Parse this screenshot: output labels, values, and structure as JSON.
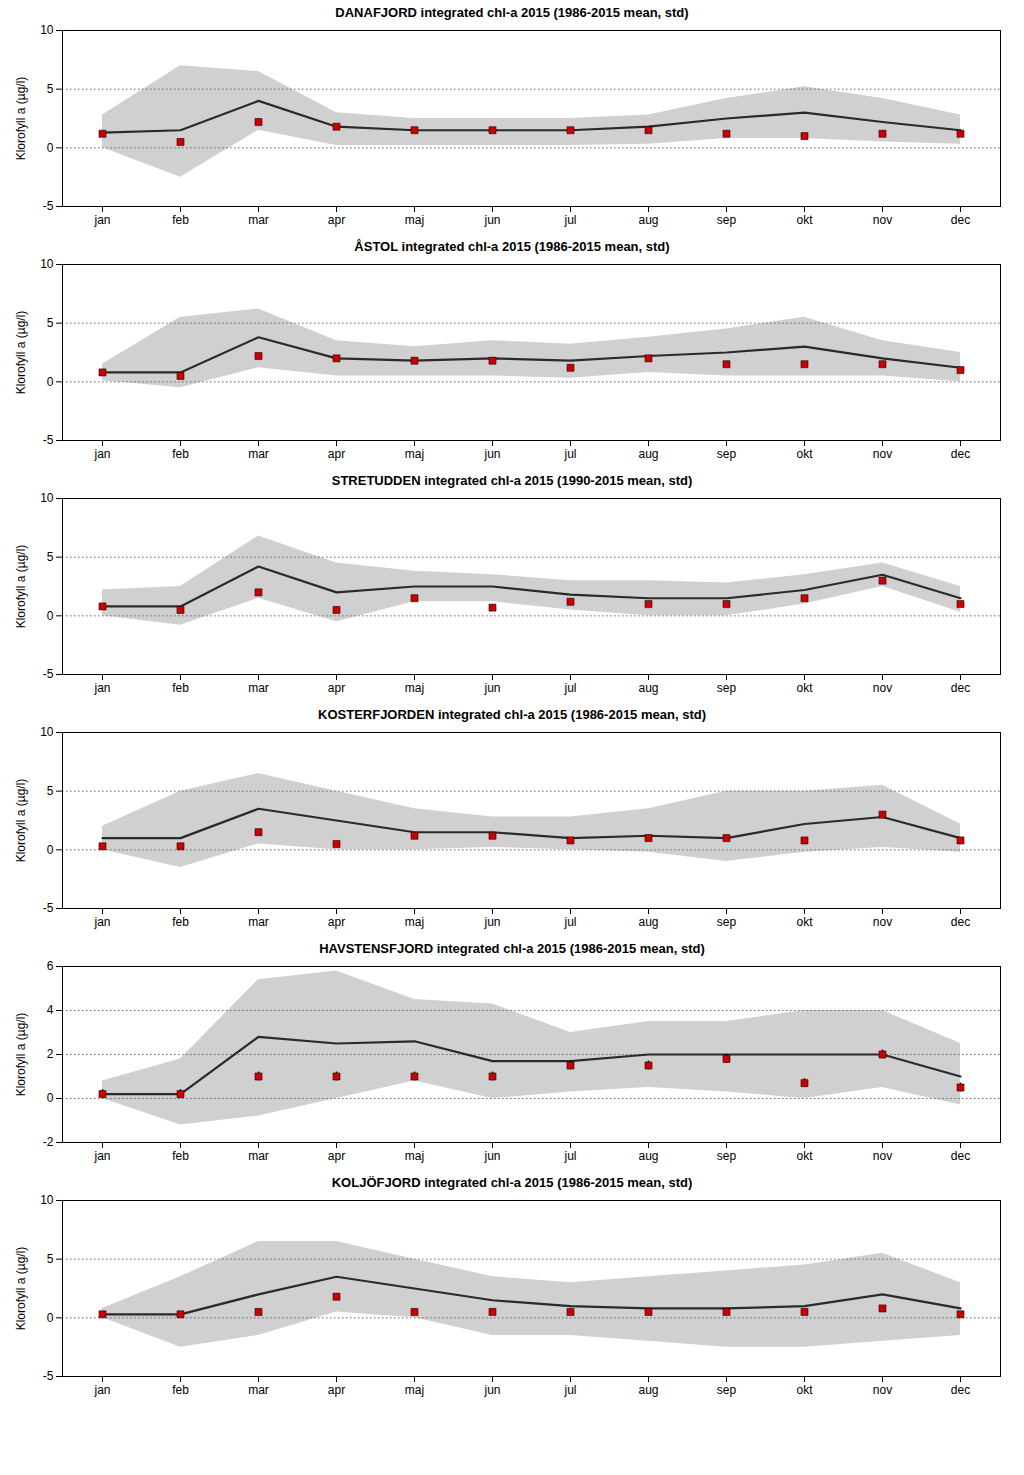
{
  "chart_data": [
    {
      "type": "line",
      "title": "DANAFJORD integrated chl-a 2015 (1986-2015 mean, std)",
      "categories": [
        "jan",
        "feb",
        "mar",
        "apr",
        "maj",
        "jun",
        "jul",
        "aug",
        "sep",
        "okt",
        "nov",
        "dec"
      ],
      "ylabel": "Klorofyll a (µg/l)",
      "ylim": [
        -5,
        10
      ],
      "yticks": [
        -5,
        0,
        5,
        10
      ],
      "grid": false,
      "hlines": {
        "values": [
          0,
          5
        ],
        "line_style": "dotted",
        "color": "#555555"
      },
      "series": [
        {
          "type": "area",
          "color": "#d0d0d0",
          "upper": [
            2.8,
            7.0,
            6.5,
            3.0,
            2.5,
            2.5,
            2.5,
            2.8,
            4.2,
            5.2,
            4.2,
            2.8
          ],
          "lower": [
            0.0,
            -2.5,
            1.5,
            0.2,
            0.2,
            0.2,
            0.2,
            0.3,
            0.8,
            0.8,
            0.5,
            0.3
          ]
        },
        {
          "type": "line",
          "color": "#2a2a2a",
          "values": [
            1.3,
            1.5,
            4.0,
            1.8,
            1.5,
            1.5,
            1.5,
            1.8,
            2.5,
            3.0,
            2.2,
            1.5
          ]
        },
        {
          "type": "scatter",
          "marker": "square",
          "color": "#cc0000",
          "values": [
            1.2,
            0.5,
            2.2,
            1.8,
            1.5,
            1.5,
            1.5,
            1.5,
            1.2,
            1.0,
            1.2,
            1.2
          ],
          "error": [
            0.25,
            0.25,
            0.25,
            0.25,
            0.25,
            0.25,
            0.25,
            0.25,
            0.25,
            0.25,
            0.25,
            0.25
          ]
        }
      ]
    },
    {
      "type": "line",
      "title": "ÅSTOL integrated chl-a 2015 (1986-2015 mean, std)",
      "categories": [
        "jan",
        "feb",
        "mar",
        "apr",
        "maj",
        "jun",
        "jul",
        "aug",
        "sep",
        "okt",
        "nov",
        "dec"
      ],
      "ylabel": "Klorofyll a (µg/l)",
      "ylim": [
        -5,
        10
      ],
      "yticks": [
        -5,
        0,
        5,
        10
      ],
      "grid": false,
      "hlines": {
        "values": [
          0,
          5
        ],
        "line_style": "dotted",
        "color": "#555555"
      },
      "series": [
        {
          "type": "area",
          "color": "#d0d0d0",
          "upper": [
            1.5,
            5.5,
            6.2,
            3.5,
            3.0,
            3.5,
            3.2,
            3.8,
            4.5,
            5.5,
            3.5,
            2.5
          ],
          "lower": [
            0.1,
            -0.5,
            1.2,
            0.5,
            0.5,
            0.5,
            0.3,
            0.8,
            0.5,
            0.5,
            0.5,
            0.0
          ]
        },
        {
          "type": "line",
          "color": "#2a2a2a",
          "values": [
            0.8,
            0.8,
            3.8,
            2.0,
            1.8,
            2.0,
            1.8,
            2.2,
            2.5,
            3.0,
            2.0,
            1.2
          ]
        },
        {
          "type": "scatter",
          "marker": "square",
          "color": "#cc0000",
          "values": [
            0.8,
            0.5,
            2.2,
            2.0,
            1.8,
            1.8,
            1.2,
            2.0,
            1.5,
            1.5,
            1.5,
            1.0
          ],
          "error": [
            0.25,
            0.25,
            0.25,
            0.25,
            0.25,
            0.25,
            0.25,
            0.25,
            0.25,
            0.25,
            0.25,
            0.25
          ]
        }
      ]
    },
    {
      "type": "line",
      "title": "STRETUDDEN integrated chl-a 2015 (1990-2015 mean, std)",
      "categories": [
        "jan",
        "feb",
        "mar",
        "apr",
        "maj",
        "jun",
        "jul",
        "aug",
        "sep",
        "okt",
        "nov",
        "dec"
      ],
      "ylabel": "Klorofyll a (µg/l)",
      "ylim": [
        -5,
        10
      ],
      "yticks": [
        -5,
        0,
        5,
        10
      ],
      "grid": false,
      "hlines": {
        "values": [
          0,
          5
        ],
        "line_style": "dotted",
        "color": "#555555"
      },
      "series": [
        {
          "type": "area",
          "color": "#d0d0d0",
          "upper": [
            2.2,
            2.5,
            6.8,
            4.5,
            3.8,
            3.5,
            3.0,
            3.0,
            2.8,
            3.5,
            4.5,
            2.5
          ],
          "lower": [
            0.0,
            -0.8,
            1.5,
            -0.5,
            1.2,
            1.2,
            0.5,
            0.0,
            0.0,
            1.0,
            2.5,
            0.3
          ]
        },
        {
          "type": "line",
          "color": "#2a2a2a",
          "values": [
            0.8,
            0.8,
            4.2,
            2.0,
            2.5,
            2.5,
            1.8,
            1.5,
            1.5,
            2.2,
            3.5,
            1.5
          ]
        },
        {
          "type": "scatter",
          "marker": "square",
          "color": "#cc0000",
          "values": [
            0.8,
            0.5,
            2.0,
            0.5,
            1.5,
            0.7,
            1.2,
            1.0,
            1.0,
            1.5,
            3.0,
            1.0
          ],
          "error": [
            0.25,
            0.25,
            0.25,
            0.25,
            0.25,
            0.25,
            0.25,
            0.25,
            0.25,
            0.25,
            0.25,
            0.25
          ]
        }
      ]
    },
    {
      "type": "line",
      "title": "KOSTERFJORDEN integrated chl-a 2015 (1986-2015 mean, std)",
      "categories": [
        "jan",
        "feb",
        "mar",
        "apr",
        "maj",
        "jun",
        "jul",
        "aug",
        "sep",
        "okt",
        "nov",
        "dec"
      ],
      "ylabel": "Klorofyll a (µg/l)",
      "ylim": [
        -5,
        10
      ],
      "yticks": [
        -5,
        0,
        5,
        10
      ],
      "grid": false,
      "hlines": {
        "values": [
          0,
          5
        ],
        "line_style": "dotted",
        "color": "#555555"
      },
      "series": [
        {
          "type": "area",
          "color": "#d0d0d0",
          "upper": [
            2.0,
            5.0,
            6.5,
            5.0,
            3.5,
            2.8,
            2.8,
            3.5,
            5.0,
            5.0,
            5.5,
            2.2
          ],
          "lower": [
            0.0,
            -1.5,
            0.5,
            0.0,
            0.0,
            0.2,
            0.0,
            -0.2,
            -1.0,
            -0.2,
            0.2,
            -0.2
          ]
        },
        {
          "type": "line",
          "color": "#2a2a2a",
          "values": [
            1.0,
            1.0,
            3.5,
            2.5,
            1.5,
            1.5,
            1.0,
            1.2,
            1.0,
            2.2,
            2.8,
            1.0
          ]
        },
        {
          "type": "scatter",
          "marker": "square",
          "color": "#cc0000",
          "values": [
            0.3,
            0.3,
            1.5,
            0.5,
            1.2,
            1.2,
            0.8,
            1.0,
            1.0,
            0.8,
            3.0,
            0.8
          ],
          "error": [
            0.25,
            0.25,
            0.25,
            0.25,
            0.25,
            0.25,
            0.25,
            0.25,
            0.25,
            0.25,
            0.25,
            0.25
          ]
        }
      ]
    },
    {
      "type": "line",
      "title": "HAVSTENSFJORD integrated chl-a 2015 (1986-2015 mean, std)",
      "categories": [
        "jan",
        "feb",
        "mar",
        "apr",
        "maj",
        "jun",
        "jul",
        "aug",
        "sep",
        "okt",
        "nov",
        "dec"
      ],
      "ylabel": "Klorofyll a (µg/l)",
      "ylim": [
        -2,
        6
      ],
      "yticks": [
        -2,
        0,
        2,
        4,
        6
      ],
      "grid": false,
      "hlines": {
        "values": [
          0,
          2,
          4
        ],
        "line_style": "dotted",
        "color": "#555555"
      },
      "series": [
        {
          "type": "area",
          "color": "#d0d0d0",
          "upper": [
            0.8,
            1.8,
            5.4,
            5.8,
            4.5,
            4.3,
            3.0,
            3.5,
            3.5,
            4.0,
            4.0,
            2.5
          ],
          "lower": [
            0.0,
            -1.2,
            -0.8,
            0.0,
            0.8,
            0.0,
            0.3,
            0.5,
            0.3,
            0.0,
            0.5,
            -0.3
          ]
        },
        {
          "type": "line",
          "color": "#2a2a2a",
          "values": [
            0.2,
            0.2,
            2.8,
            2.5,
            2.6,
            1.7,
            1.7,
            2.0,
            2.0,
            2.0,
            2.0,
            1.0
          ]
        },
        {
          "type": "scatter",
          "marker": "square",
          "color": "#cc0000",
          "values": [
            0.2,
            0.2,
            1.0,
            1.0,
            1.0,
            1.0,
            1.5,
            1.5,
            1.8,
            0.7,
            2.0,
            0.5
          ],
          "error": [
            0.2,
            0.2,
            0.2,
            0.2,
            0.2,
            0.2,
            0.2,
            0.2,
            0.2,
            0.2,
            0.2,
            0.2
          ]
        }
      ]
    },
    {
      "type": "line",
      "title": "KOLJÖFJORD integrated chl-a 2015 (1986-2015 mean, std)",
      "categories": [
        "jan",
        "feb",
        "mar",
        "apr",
        "maj",
        "jun",
        "jul",
        "aug",
        "sep",
        "okt",
        "nov",
        "dec"
      ],
      "ylabel": "Klorofyll a (µg/l)",
      "ylim": [
        -5,
        10
      ],
      "yticks": [
        -5,
        0,
        5,
        10
      ],
      "grid": false,
      "hlines": {
        "values": [
          0,
          5
        ],
        "line_style": "dotted",
        "color": "#555555"
      },
      "series": [
        {
          "type": "area",
          "color": "#d0d0d0",
          "upper": [
            0.8,
            3.5,
            6.5,
            6.5,
            5.0,
            3.5,
            3.0,
            3.5,
            4.0,
            4.5,
            5.5,
            3.0
          ],
          "lower": [
            0.0,
            -2.5,
            -1.5,
            0.5,
            0.0,
            -1.5,
            -1.5,
            -2.0,
            -2.5,
            -2.5,
            -2.0,
            -1.5
          ]
        },
        {
          "type": "line",
          "color": "#2a2a2a",
          "values": [
            0.3,
            0.3,
            2.0,
            3.5,
            2.5,
            1.5,
            1.0,
            0.8,
            0.8,
            1.0,
            2.0,
            0.8
          ]
        },
        {
          "type": "scatter",
          "marker": "square",
          "color": "#cc0000",
          "values": [
            0.3,
            0.3,
            0.5,
            1.8,
            0.5,
            0.5,
            0.5,
            0.5,
            0.5,
            0.5,
            0.8,
            0.3
          ],
          "error": [
            0.25,
            0.25,
            0.25,
            0.25,
            0.25,
            0.25,
            0.25,
            0.25,
            0.25,
            0.25,
            0.25,
            0.25
          ]
        }
      ]
    }
  ]
}
